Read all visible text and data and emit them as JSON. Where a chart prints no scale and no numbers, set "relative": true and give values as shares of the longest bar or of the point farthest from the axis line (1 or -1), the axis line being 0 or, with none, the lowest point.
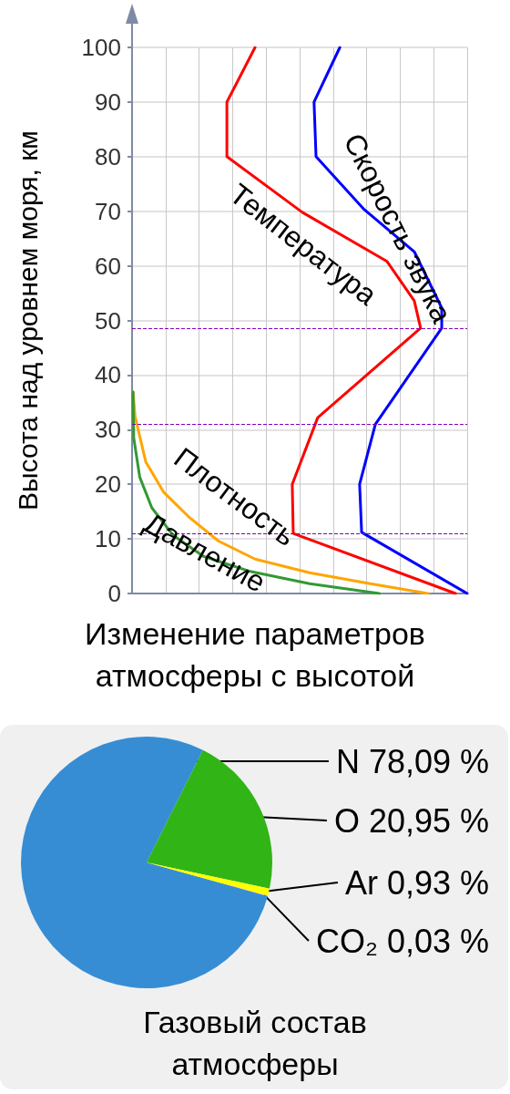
{
  "chart_data": [
    {
      "type": "line",
      "title": "Изменение параметров атмосферы с высотой",
      "ylabel": "Высота над уровнем моря, км",
      "orientation": "horizontal",
      "relative": true,
      "grid": true,
      "ylim": [
        0,
        100
      ],
      "yticks": [
        0,
        10,
        20,
        30,
        40,
        50,
        60,
        70,
        80,
        90,
        100
      ],
      "series": [
        {
          "name": "Скорость звука",
          "color": "#0000ff",
          "x": [
            0,
            11.2,
            20,
            31,
            48.6,
            52.3,
            62.6,
            70.3,
            80,
            90,
            100
          ],
          "values": [
            1.0,
            0.685,
            0.679,
            0.726,
            0.924,
            0.924,
            0.842,
            0.693,
            0.549,
            0.543,
            0.62
          ]
        },
        {
          "name": "Температура",
          "color": "#ff0000",
          "x": [
            0,
            11,
            20,
            32.2,
            48.6,
            53.6,
            60.8,
            69.8,
            80,
            90,
            100
          ],
          "values": [
            0.965,
            0.481,
            0.478,
            0.554,
            0.861,
            0.842,
            0.761,
            0.508,
            0.283,
            0.283,
            0.367
          ]
        },
        {
          "name": "Плотность",
          "color": "#ffa500",
          "x": [
            0,
            1.8,
            3.8,
            6.3,
            9.6,
            14.1,
            18.5,
            24.1,
            32.4,
            36.9
          ],
          "values": [
            0.883,
            0.711,
            0.53,
            0.367,
            0.258,
            0.168,
            0.095,
            0.041,
            0.009,
            0.003
          ]
        },
        {
          "name": "Давление",
          "color": "#339933",
          "x": [
            0,
            1.8,
            4.1,
            6.8,
            10.7,
            15.7,
            21.3,
            28.5,
            36.9
          ],
          "values": [
            0.738,
            0.53,
            0.349,
            0.213,
            0.122,
            0.059,
            0.023,
            0.005,
            0.003
          ]
        }
      ],
      "ref_lines": [
        {
          "axis": "y",
          "value": 11,
          "color": "#8000c0",
          "line_style": "dashed"
        },
        {
          "axis": "y",
          "value": 31,
          "color": "#8000c0",
          "line_style": "dashed"
        },
        {
          "axis": "y",
          "value": 48.5,
          "color": "#8000c0",
          "line_style": "dashed"
        }
      ]
    },
    {
      "type": "pie",
      "title": "Газовый состав атмосферы",
      "categories": [
        "N",
        "O",
        "Ar",
        "CO₂"
      ],
      "values": [
        78.09,
        20.95,
        0.93,
        0.03
      ],
      "colors": [
        "#378dd4",
        "#31b416",
        "#ffff00",
        "#e080e8"
      ],
      "value_labels": [
        "78,09 %",
        "20,95 %",
        "0,93 %",
        "0,03 %"
      ]
    }
  ]
}
